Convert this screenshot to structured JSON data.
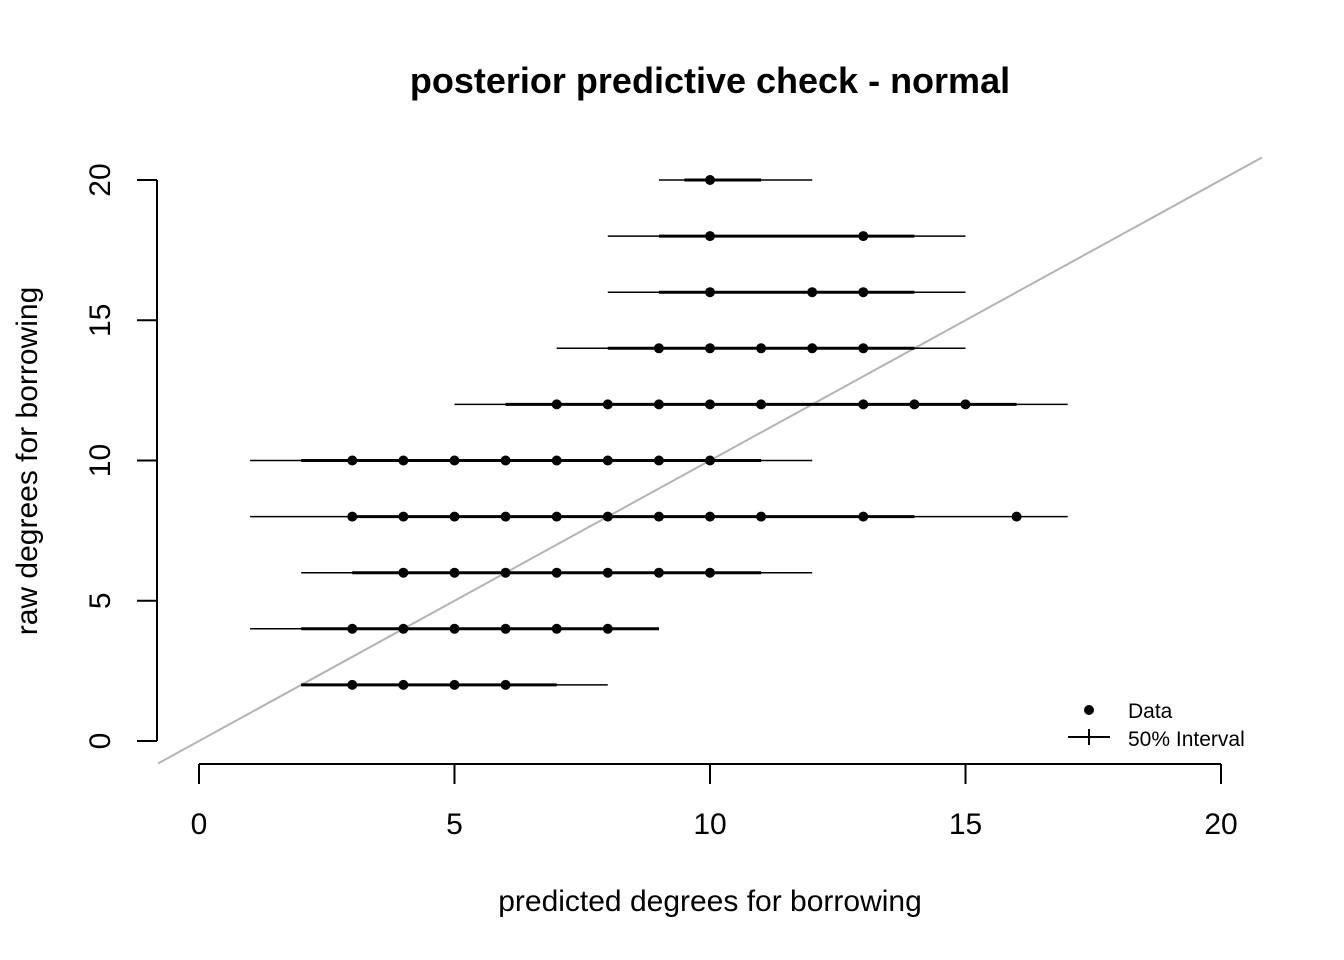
{
  "chart_data": {
    "type": "scatter",
    "title": "posterior predictive check - normal",
    "xlabel": "predicted degrees for borrowing",
    "ylabel": "raw degrees for borrowing",
    "xlim": [
      0,
      20
    ],
    "ylim": [
      0,
      20
    ],
    "x_ticks": [
      "0",
      "5",
      "10",
      "15",
      "20"
    ],
    "y_ticks": [
      "0",
      "5",
      "10",
      "15",
      "20"
    ],
    "grid": false,
    "legend": {
      "placement": "bottom-right",
      "entries": [
        {
          "label": "Data",
          "symbol": "point"
        },
        {
          "label": "50% Interval",
          "symbol": "line"
        }
      ]
    },
    "reference_line": {
      "slope": 1,
      "intercept": 0,
      "color": "#b3b3b3"
    },
    "series": [
      {
        "y": 2,
        "points": [
          3,
          4,
          5,
          6
        ],
        "interval": [
          2,
          8
        ],
        "interval_thick": [
          2,
          7
        ]
      },
      {
        "y": 4,
        "points": [
          3,
          4,
          5,
          6,
          7,
          8
        ],
        "interval": [
          1,
          9
        ],
        "interval_thick": [
          2,
          9
        ]
      },
      {
        "y": 6,
        "points": [
          4,
          5,
          6,
          7,
          8,
          9,
          10
        ],
        "interval": [
          2,
          12
        ],
        "interval_thick": [
          3,
          11
        ]
      },
      {
        "y": 8,
        "points": [
          3,
          4,
          5,
          6,
          7,
          8,
          9,
          10,
          11,
          13,
          16
        ],
        "interval": [
          1,
          17
        ],
        "interval_thick": [
          3,
          14
        ]
      },
      {
        "y": 10,
        "points": [
          3,
          4,
          5,
          6,
          7,
          8,
          9,
          10
        ],
        "interval": [
          1,
          12
        ],
        "interval_thick": [
          2,
          11
        ]
      },
      {
        "y": 12,
        "points": [
          7,
          8,
          9,
          10,
          11,
          13,
          14,
          15
        ],
        "interval": [
          5,
          17
        ],
        "interval_thick": [
          6,
          16
        ]
      },
      {
        "y": 14,
        "points": [
          9,
          10,
          11,
          12,
          13
        ],
        "interval": [
          7,
          15
        ],
        "interval_thick": [
          8,
          14
        ]
      },
      {
        "y": 16,
        "points": [
          10,
          12,
          13
        ],
        "interval": [
          8,
          15
        ],
        "interval_thick": [
          9,
          14
        ]
      },
      {
        "y": 18,
        "points": [
          10,
          13
        ],
        "interval": [
          8,
          15
        ],
        "interval_thick": [
          9,
          14
        ]
      },
      {
        "y": 20,
        "points": [
          10
        ],
        "interval": [
          9,
          12
        ],
        "interval_thick": [
          9.5,
          11
        ]
      }
    ]
  }
}
